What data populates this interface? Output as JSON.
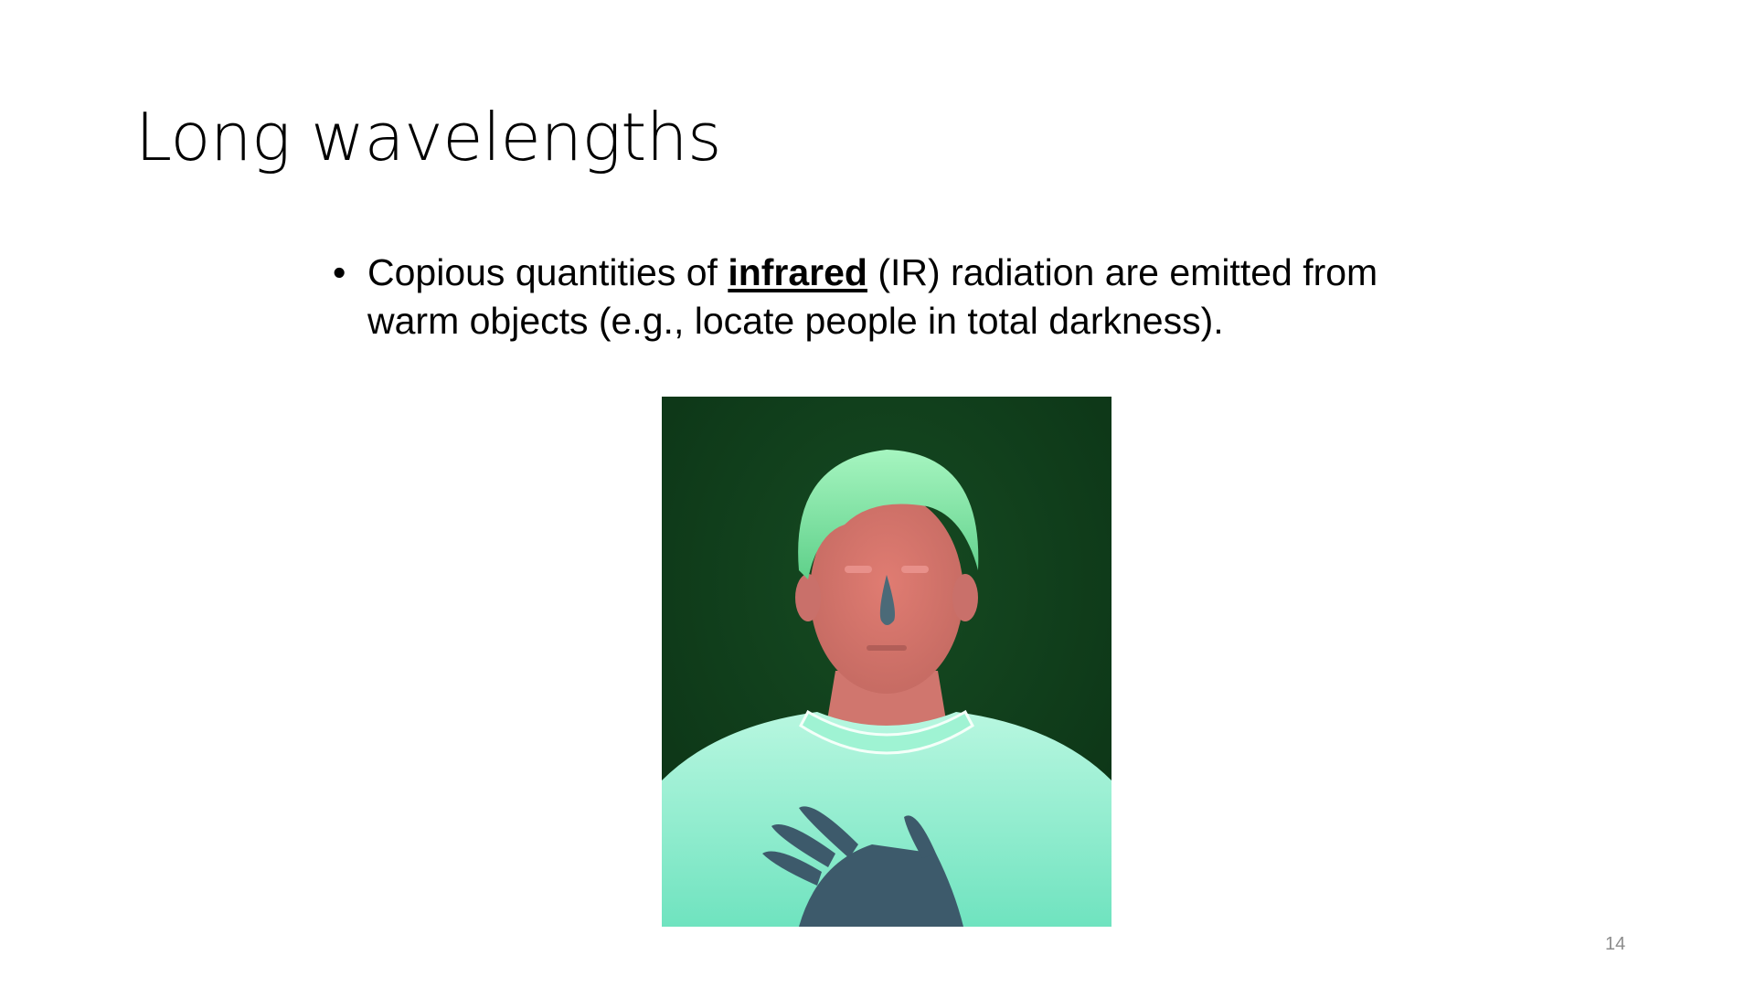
{
  "slide": {
    "title": "Long wavelengths",
    "bullets": [
      {
        "text_before": "Copious quantities of ",
        "emphasis": "infrared",
        "text_after": " (IR) radiation are emitted from warm objects (e.g., locate people in total darkness)."
      }
    ],
    "bullet_glyph": "•",
    "figure": {
      "icon": "infrared-portrait-image",
      "colors": {
        "background": "#0f3a1a",
        "hair": "#7fe8a4",
        "skin": "#d9756a",
        "sweater": "#8ff0cf",
        "hand": "#3a5a6a"
      }
    },
    "page_number": "14"
  }
}
